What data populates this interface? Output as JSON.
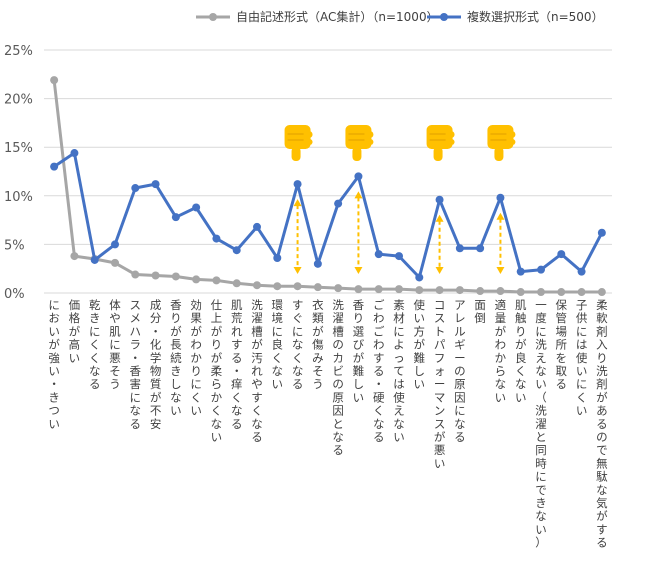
{
  "chart_data": {
    "type": "line",
    "title": "",
    "xlabel": "",
    "ylabel": "",
    "ylim": [
      0,
      25
    ],
    "y_ticks": [
      "0%",
      "5%",
      "10%",
      "15%",
      "20%",
      "25%"
    ],
    "grid": true,
    "legend_position": "top",
    "categories": [
      "においが強い・きつい",
      "価格が高い",
      "乾きにくくなる",
      "体や肌に悪そう",
      "スメハラ・香害になる",
      "成分・化学物質が不安",
      "香りが長続きしない",
      "効果がわかりにくい",
      "仕上がりが柔らかくない",
      "肌荒れする・痒くなる",
      "洗濯槽が汚れやすくなる",
      "環境に良くない",
      "すぐになくなる",
      "衣類が傷みそう",
      "洗濯槽のカビの原因となる",
      "香り選びが難しい",
      "ごわごわする・硬くなる",
      "素材によっては使えない",
      "使い方が難しい",
      "コストパフォーマンスが悪い",
      "アレルギーの原因になる",
      "面倒",
      "適量がわからない",
      "肌触りが良くない",
      "一度に洗えない（洗濯と同時にできない）",
      "保管場所を取る",
      "子供には使いにくい",
      "柔軟剤入り洗剤があるので無駄な気がする"
    ],
    "series": [
      {
        "name": "自由記述形式（AC集計）（n=1000）",
        "color": "#a6a6a6",
        "values": [
          21.9,
          3.8,
          3.5,
          3.1,
          1.9,
          1.8,
          1.7,
          1.4,
          1.3,
          1.0,
          0.8,
          0.7,
          0.7,
          0.6,
          0.5,
          0.4,
          0.4,
          0.4,
          0.3,
          0.3,
          0.3,
          0.2,
          0.2,
          0.1,
          0.1,
          0.1,
          0.1,
          0.1
        ]
      },
      {
        "name": "複数選択形式（n=500）",
        "color": "#4472c4",
        "values": [
          13.0,
          14.4,
          3.4,
          5.0,
          10.8,
          11.2,
          7.8,
          8.8,
          5.6,
          4.4,
          6.8,
          3.6,
          11.2,
          3.0,
          9.2,
          12.0,
          4.0,
          3.8,
          1.6,
          9.6,
          4.6,
          4.6,
          9.8,
          2.2,
          2.4,
          4.0,
          2.2,
          6.2
        ]
      }
    ],
    "annotations": {
      "icon": "pointing-hand-icon",
      "highlight_color": "#ffc000",
      "highlighted_categories": [
        "すぐになくなる",
        "香り選びが難しい",
        "コストパフォーマンスが悪い",
        "適量がわからない"
      ]
    }
  }
}
